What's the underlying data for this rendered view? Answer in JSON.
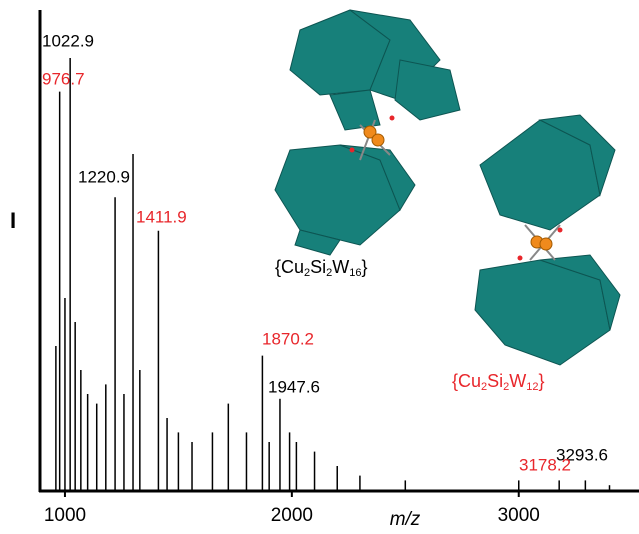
{
  "chart_data": {
    "type": "stick",
    "x_label": "m/z",
    "y_label": "I",
    "x": [
      960,
      976.7,
      1000,
      1022.9,
      1045,
      1070,
      1100,
      1140,
      1180,
      1220.9,
      1260,
      1300,
      1330,
      1411.9,
      1450,
      1500,
      1560,
      1650,
      1720,
      1800,
      1870.2,
      1900,
      1947.6,
      1990,
      2020,
      2100,
      2200,
      2300,
      2500,
      3000,
      3178.2,
      3293.6,
      3400
    ],
    "values": [
      30,
      83,
      40,
      90,
      35,
      25,
      20,
      18,
      22,
      61,
      20,
      70,
      25,
      54,
      15,
      12,
      10,
      12,
      18,
      12,
      28,
      10,
      19,
      12,
      10,
      8,
      5,
      3,
      2,
      2,
      2,
      2,
      1
    ],
    "color": "#000000",
    "xlim": [
      890,
      3530
    ],
    "ylim": [
      0,
      100
    ],
    "xticks": [
      1000,
      2000,
      3000
    ],
    "annotations": [
      {
        "text": "1022.9",
        "color": "#000000"
      },
      {
        "text": "976.7",
        "color": "#e8262b"
      },
      {
        "text": "1220.9",
        "color": "#000000"
      },
      {
        "text": "1411.9",
        "color": "#e8262b"
      },
      {
        "text": "1870.2",
        "color": "#e8262b"
      },
      {
        "text": "1947.6",
        "color": "#000000"
      },
      {
        "text": "3293.6",
        "color": "#000000"
      },
      {
        "text": "3178.2",
        "color": "#e8262b"
      }
    ],
    "structures": [
      {
        "parts": [
          "{Cu",
          "2",
          "Si",
          "2",
          "W",
          "16",
          "}"
        ],
        "color": "#000000"
      },
      {
        "parts": [
          "{Cu",
          "2",
          "Si",
          "2",
          "W",
          "12",
          "}"
        ],
        "color": "#e8262b"
      }
    ]
  }
}
